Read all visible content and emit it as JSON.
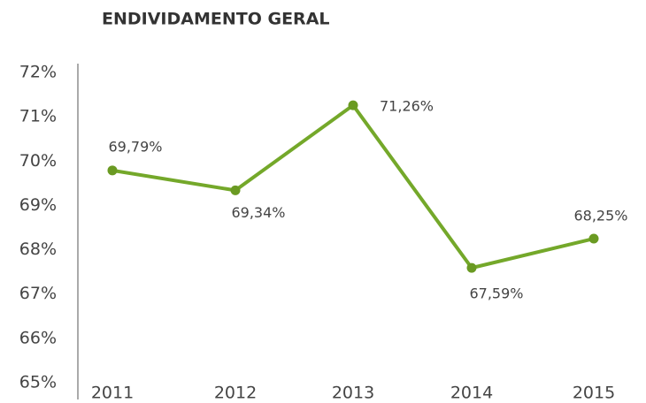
{
  "chart_data": {
    "type": "line",
    "title": "ENDIVIDAMENTO GERAL",
    "categories": [
      "2011",
      "2012",
      "2013",
      "2014",
      "2015"
    ],
    "series": [
      {
        "name": null,
        "color": "#74a82a",
        "values": [
          69.79,
          69.34,
          71.26,
          67.59,
          68.25
        ],
        "value_labels": [
          "69,79%",
          "69,34%",
          "71,26%",
          "67,59%",
          "68,25%"
        ]
      }
    ],
    "ylim": [
      65,
      72
    ],
    "yticks": [
      {
        "value": 65,
        "label": "65%"
      },
      {
        "value": 66,
        "label": "66%"
      },
      {
        "value": 67,
        "label": "67%"
      },
      {
        "value": 68,
        "label": "68%"
      },
      {
        "value": 69,
        "label": "69%"
      },
      {
        "value": 70,
        "label": "70%"
      },
      {
        "value": 71,
        "label": "71%"
      },
      {
        "value": 72,
        "label": "72%"
      }
    ],
    "grid": false
  }
}
